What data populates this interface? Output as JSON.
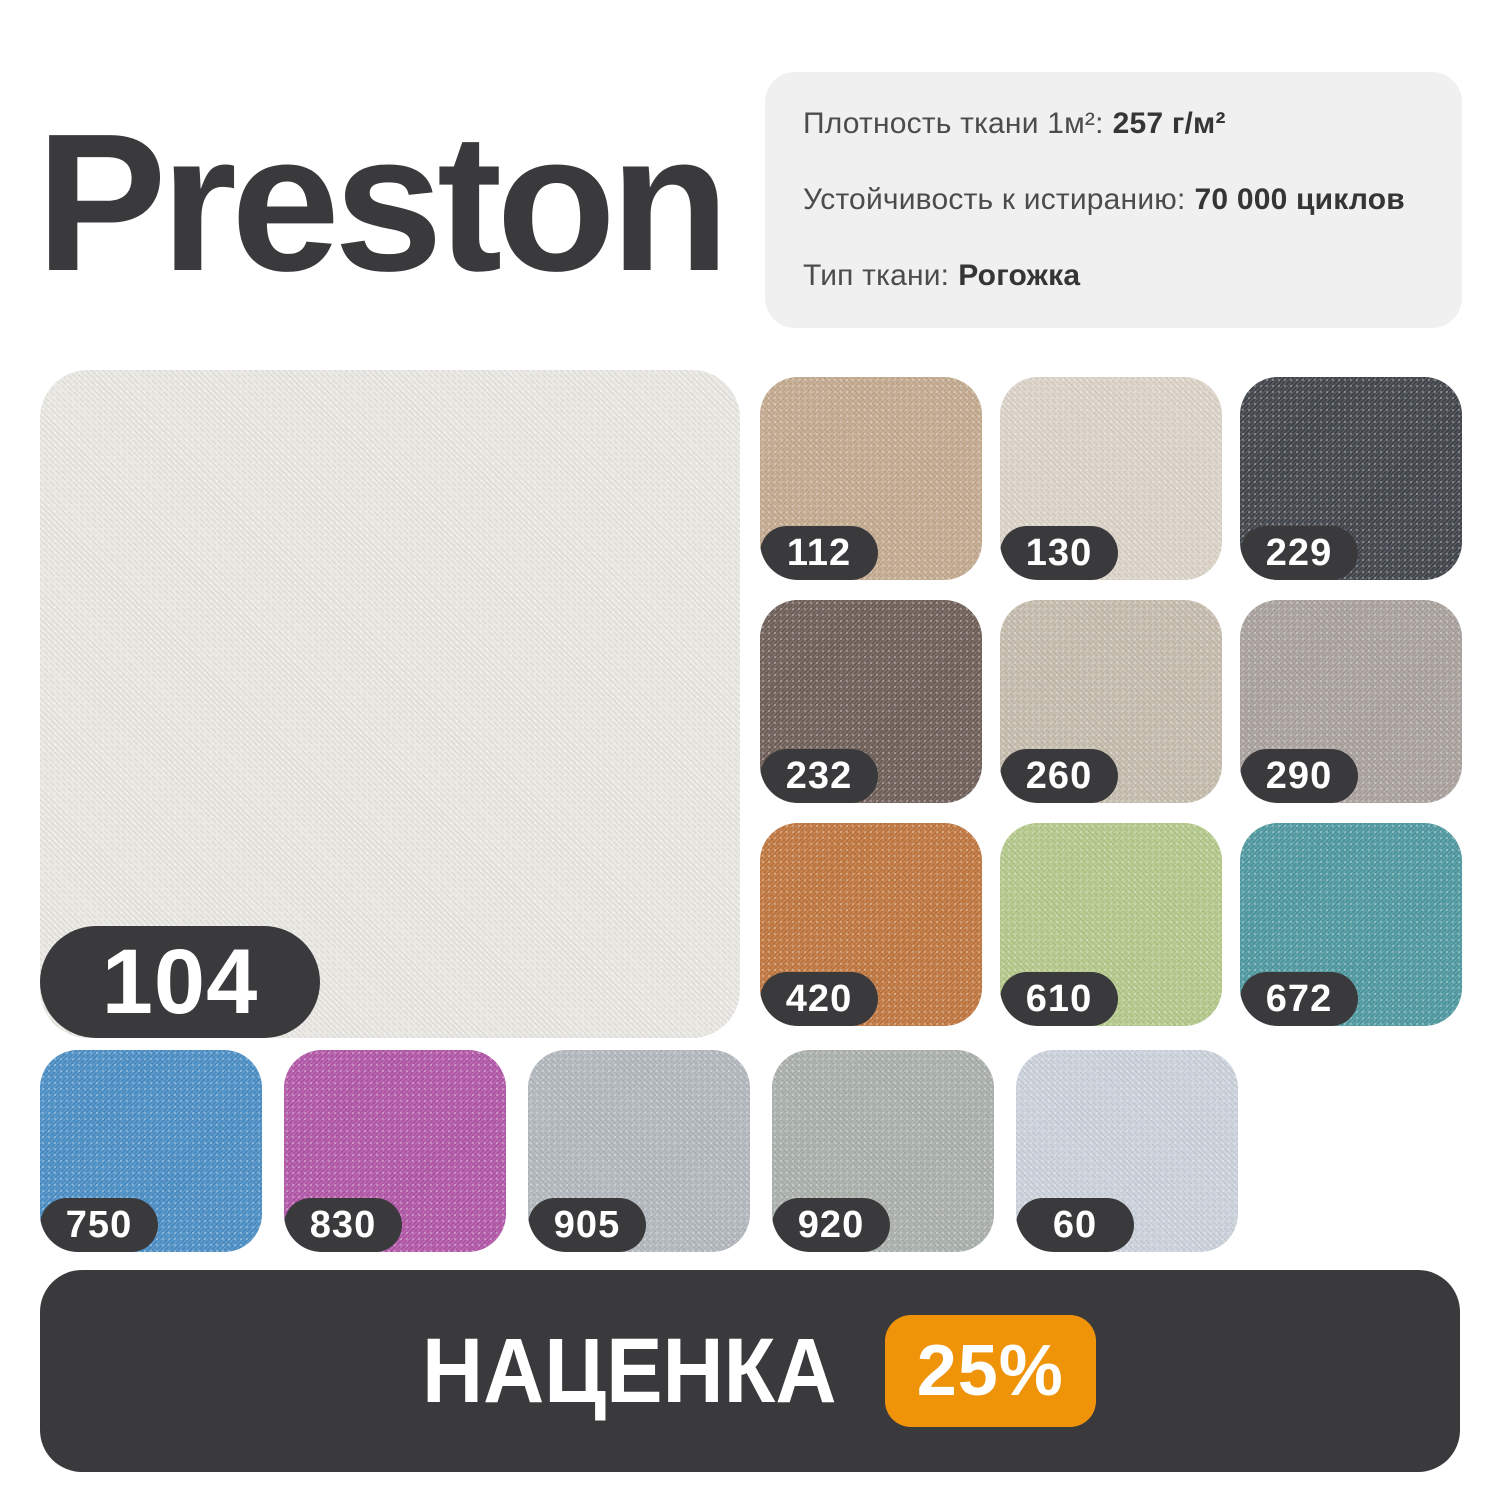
{
  "title": "Preston",
  "specs": [
    {
      "label": "Плотность ткани 1м²:",
      "value": "257 г/м²"
    },
    {
      "label": "Устойчивость к истиранию:",
      "value": "70 000 циклов"
    },
    {
      "label": "Тип ткани:",
      "value": "Рогожка"
    }
  ],
  "main_swatch": {
    "code": "104",
    "color": "#e9e8e3"
  },
  "palette_grid": [
    {
      "code": "112",
      "color": "#c3aa8f"
    },
    {
      "code": "130",
      "color": "#dcd3c9"
    },
    {
      "code": "229",
      "color": "#3f434a"
    },
    {
      "code": "232",
      "color": "#6e5f58"
    },
    {
      "code": "260",
      "color": "#c5bcad"
    },
    {
      "code": "290",
      "color": "#a9a19d"
    },
    {
      "code": "420",
      "color": "#c0763e"
    },
    {
      "code": "610",
      "color": "#b4c98a"
    },
    {
      "code": "672",
      "color": "#4e99a1"
    }
  ],
  "bottom_row": [
    {
      "code": "750",
      "color": "#4a8ec6"
    },
    {
      "code": "830",
      "color": "#b256a8"
    },
    {
      "code": "905",
      "color": "#b2b8be"
    },
    {
      "code": "920",
      "color": "#aab0ab"
    },
    {
      "code": "60",
      "color": "#ccd2dc"
    }
  ],
  "markup": {
    "label": "НАЦЕНКА",
    "value": "25%"
  },
  "theme": {
    "dark": "#3a3a3c",
    "accent": "#ef9309",
    "card": "#f0f0f0",
    "page": "#ffffff",
    "label": "#4c4c4e",
    "value": "#353537"
  }
}
